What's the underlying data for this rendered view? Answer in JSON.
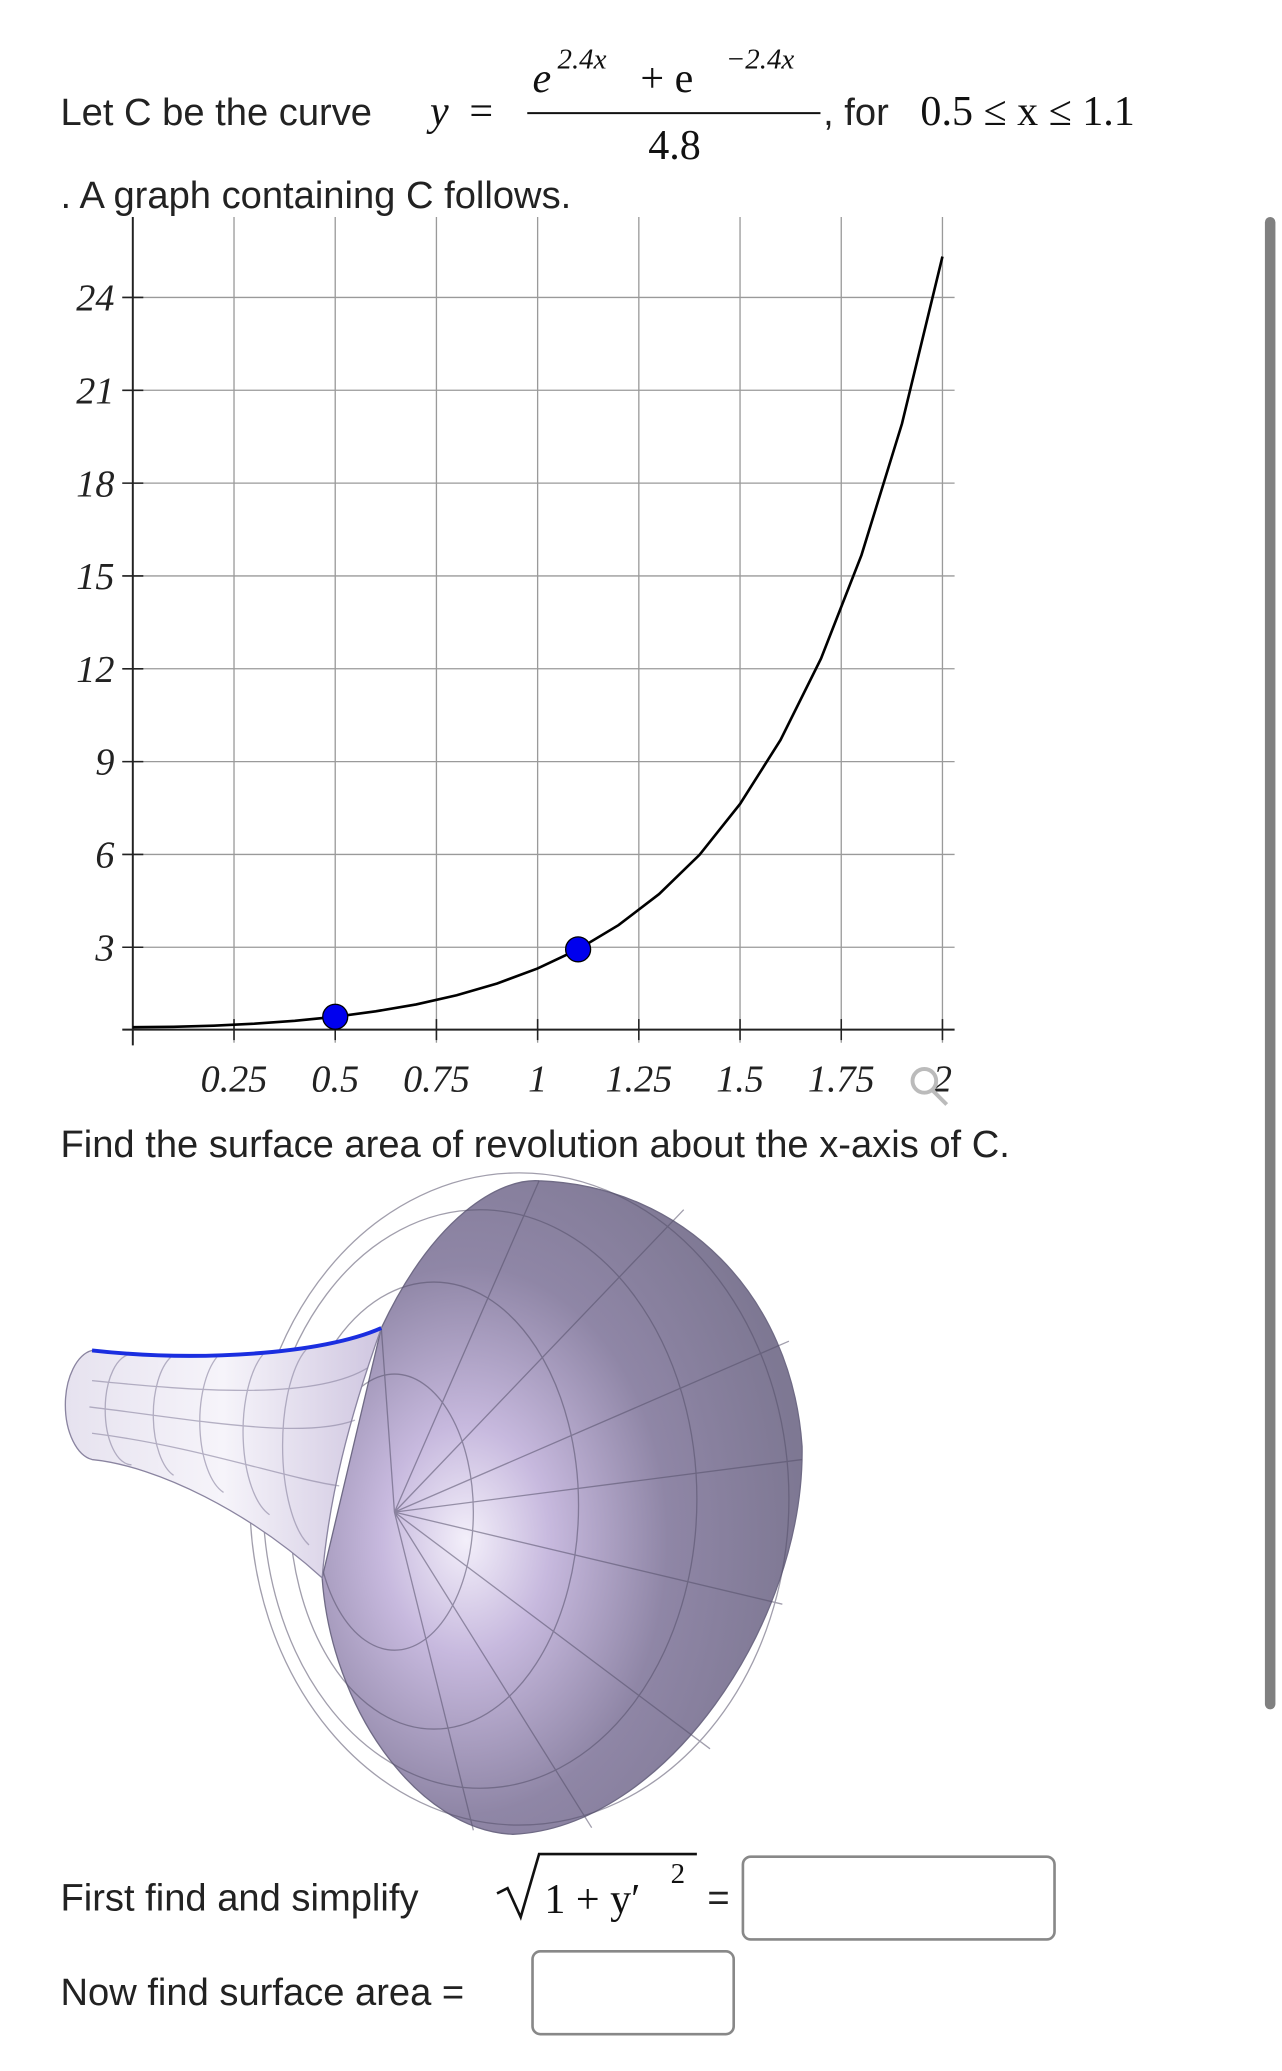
{
  "question": {
    "intro": "Let C be the curve",
    "lhs": "y",
    "equals": "=",
    "num_base1": "e",
    "num_exp1": "2.4x",
    "num_plus": "+ e",
    "num_exp2": "−2.4x",
    "denominator": "4.8",
    "for_text": ", for",
    "domain": "0.5 ≤ x ≤ 1.1",
    "follow_text": ". A graph containing C follows.",
    "find_text": "Find the surface area of revolution about the x-axis of C.",
    "step1_text": "First find and simplify",
    "step1_math": "1 + y′",
    "step1_exp": "2",
    "step1_equals": "=",
    "step2_text": "Now find surface area ="
  },
  "chart_data": {
    "type": "line",
    "x": [
      0,
      0.1,
      0.2,
      0.3,
      0.4,
      0.5,
      0.6,
      0.7,
      0.8,
      0.9,
      1.0,
      1.1,
      1.2,
      1.3,
      1.4,
      1.5,
      1.6,
      1.7,
      1.8,
      1.9,
      2.0
    ],
    "values": [
      0.4167,
      0.4287,
      0.4656,
      0.5294,
      0.6243,
      0.7544,
      0.9308,
      1.1538,
      1.45,
      1.8306,
      2.3154,
      2.9328,
      3.7172,
      4.7182,
      5.9895,
      7.6303,
      9.7001,
      12.3293,
      15.675,
      19.92,
      25.32
    ],
    "color": "#000000",
    "points": {
      "x": [
        0.5,
        1.1
      ],
      "values": [
        0.7544,
        2.9328
      ],
      "color": "#0000ee"
    },
    "xlim": [
      -0.026,
      2.03
    ],
    "ylim": [
      0.34,
      26.6
    ],
    "xticks": [
      0.25,
      0.5,
      0.75,
      1,
      1.25,
      1.5,
      1.75,
      2
    ],
    "yticks": [
      3,
      6,
      9,
      12,
      15,
      18,
      21,
      24
    ],
    "grid": true
  }
}
